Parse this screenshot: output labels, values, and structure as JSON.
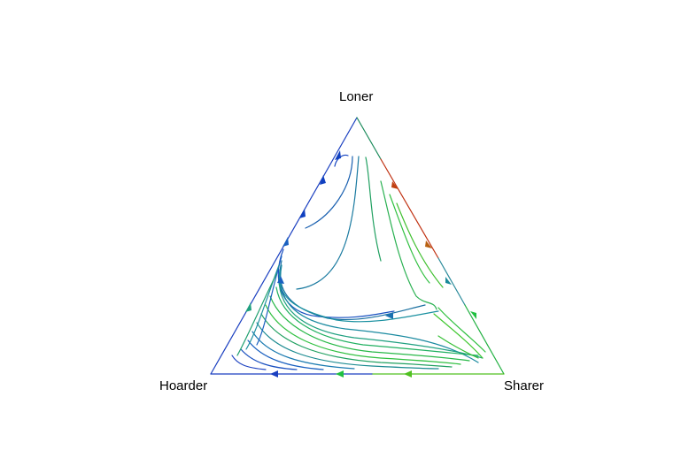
{
  "vertices": {
    "top": "Loner",
    "left": "Hoarder",
    "right": "Sharer"
  },
  "colors": {
    "background": "#ffffff",
    "blue": "#1030c8",
    "teal": "#1a7a9a",
    "green": "#20c040",
    "lime": "#50d020",
    "orange": "#b86010",
    "red": "#c03010"
  }
}
